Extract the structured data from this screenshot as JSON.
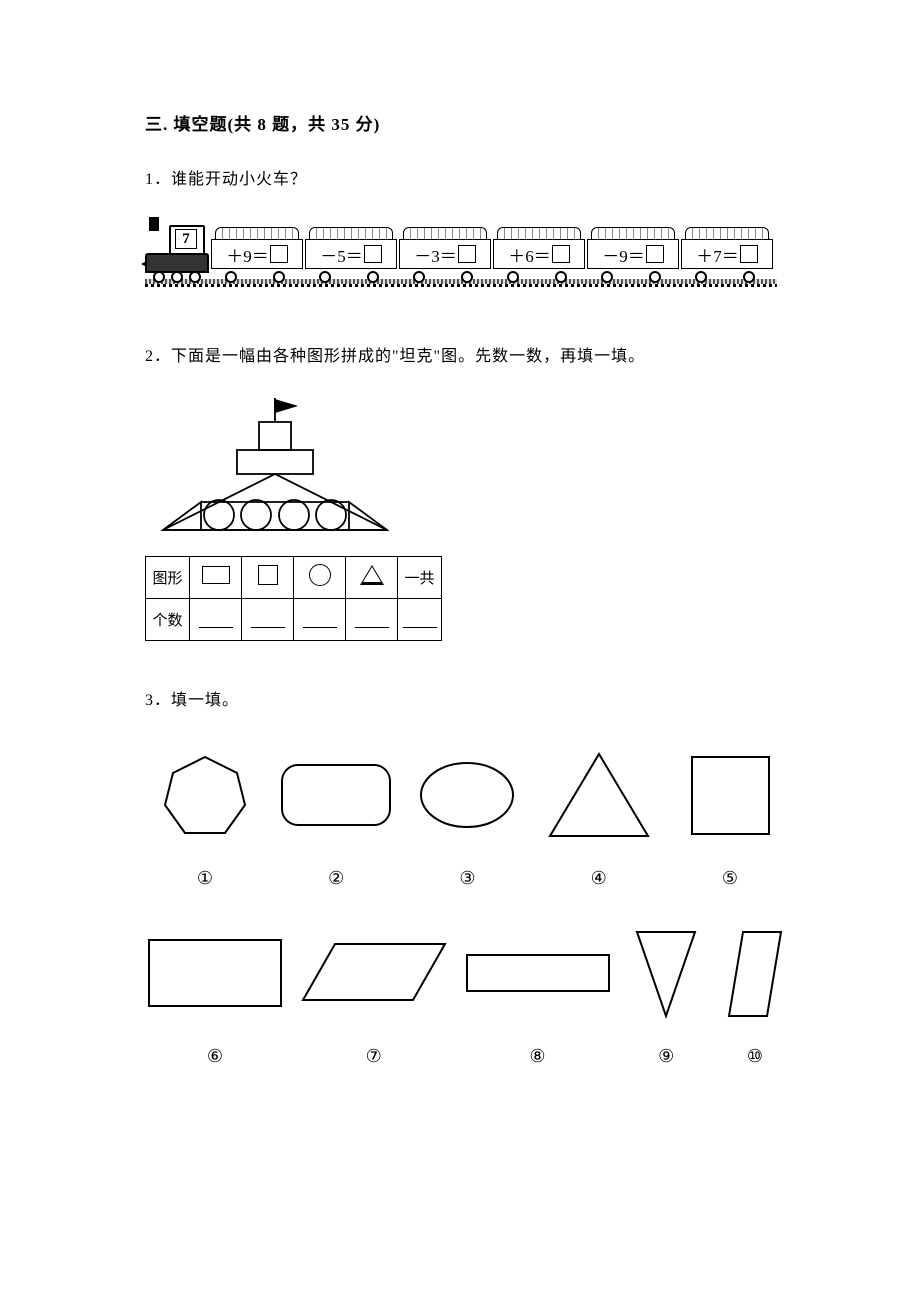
{
  "section": {
    "number": "三",
    "title": "填空题",
    "count_text": "(共 8 题，共 35 分)"
  },
  "q1": {
    "num": "1",
    "text": "谁能开动小火车？",
    "start_number": "7",
    "cars": [
      {
        "op": "＋",
        "val": "9",
        "eq": "＝"
      },
      {
        "op": "－",
        "val": "5",
        "eq": "＝"
      },
      {
        "op": "－",
        "val": "3",
        "eq": "＝"
      },
      {
        "op": "＋",
        "val": "6",
        "eq": "＝"
      },
      {
        "op": "－",
        "val": "9",
        "eq": "＝"
      },
      {
        "op": "＋",
        "val": "7",
        "eq": "＝"
      }
    ]
  },
  "q2": {
    "num": "2",
    "text": "下面是一幅由各种图形拼成的\"坦克\"图。先数一数，再填一填。",
    "table": {
      "row1_label": "图形",
      "row2_label": "个数",
      "total_label": "一共"
    }
  },
  "q3": {
    "num": "3",
    "text": "填一填。",
    "labels_row1": [
      "①",
      "②",
      "③",
      "④",
      "⑤"
    ],
    "labels_row2": [
      "⑥",
      "⑦",
      "⑧",
      "⑨",
      "⑩"
    ]
  },
  "style": {
    "stroke": "#000000",
    "stroke_width": 2
  }
}
